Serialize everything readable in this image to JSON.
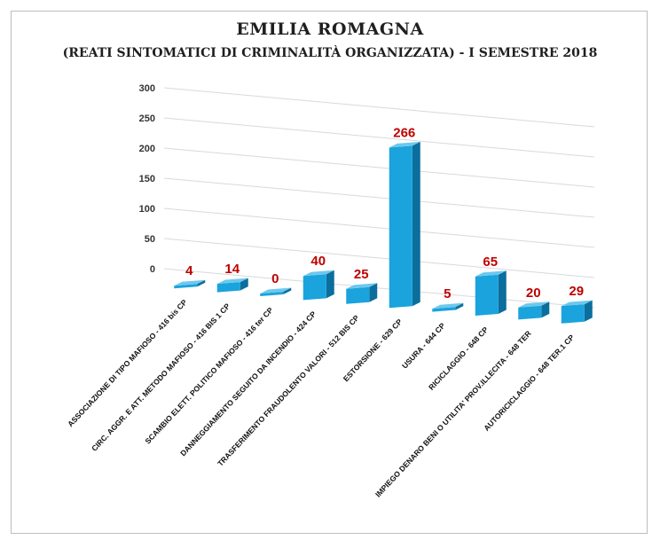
{
  "chart_data": {
    "type": "bar",
    "title": "EMILIA ROMAGNA",
    "subtitle": "(REATI SINTOMATICI DI CRIMINALITÀ ORGANIZZATA) - I SEMESTRE 2018",
    "categories": [
      "ASSOCIAZIONE DI TIPO MAFIOSO - 416 bis CP",
      "CIRC. AGGR. E ATT. METODO MAFIOSO - 416 BIS 1 CP",
      "SCAMBIO ELETT. POLITICO MAFIOSO - 416 ter CP",
      "DANNEGGIAMENTO SEGUITO DA INCENDIO - 424 CP",
      "TRASFERIMENTO FRAUDOLENTO VALORI - 512 BIS CP",
      "ESTORSIONE - 629 CP",
      "USURA - 644 CP",
      "RICICLAGGIO - 648 CP",
      "IMPIEGO DENARO BENI O UTILITA' PROV.ILLECITA - 648 TER",
      "AUTORICICLAGGIO - 648 TER.1 CP"
    ],
    "values": [
      4,
      14,
      0,
      40,
      25,
      266,
      5,
      65,
      20,
      29
    ],
    "value_labels": [
      "4",
      "14",
      "0",
      "40",
      "25",
      "266",
      "5",
      "65",
      "20",
      "29"
    ],
    "yticks": [
      "0",
      "50",
      "100",
      "150",
      "200",
      "250",
      "300"
    ],
    "ylim": [
      0,
      300
    ],
    "bar_color": "#1aa3dc",
    "label_color": "#c00000",
    "grid": true,
    "legend": false
  }
}
